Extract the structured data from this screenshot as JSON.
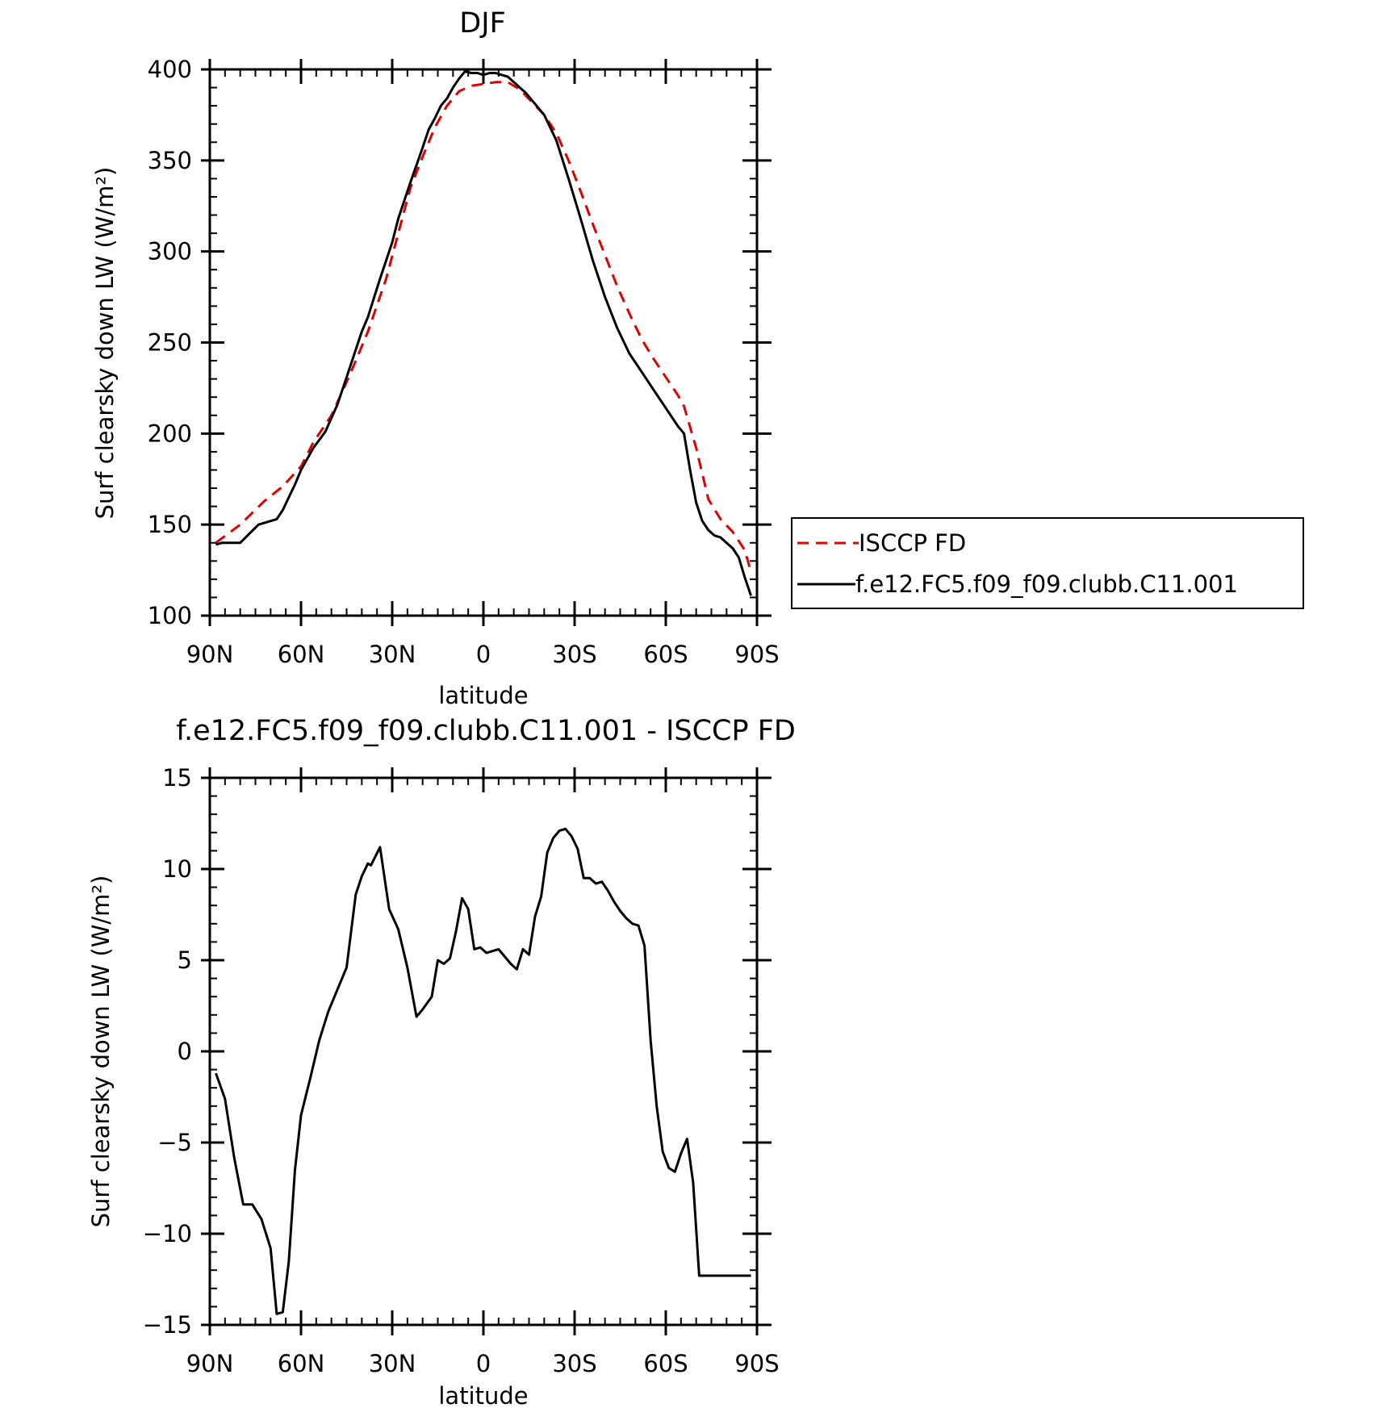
{
  "chart_data": [
    {
      "type": "line",
      "title": "DJF",
      "xlabel": "latitude",
      "ylabel": "Surf clearsky down LW (W/m²)",
      "ylim": [
        100,
        400
      ],
      "xlim": [
        90,
        -90
      ],
      "x_ticks": [
        90,
        60,
        30,
        0,
        -30,
        -60,
        -90
      ],
      "x_tick_labels": [
        "90N",
        "60N",
        "30N",
        "0",
        "30S",
        "60S",
        "90S"
      ],
      "y_ticks": [
        100,
        150,
        200,
        250,
        300,
        350,
        400
      ],
      "y_tick_labels": [
        "100",
        "150",
        "200",
        "250",
        "300",
        "350",
        "400"
      ],
      "legend": "right",
      "series": [
        {
          "name": "ISCCP FD",
          "color": "#e00000",
          "dash": "dashed",
          "x": [
            88,
            80,
            72,
            66,
            60,
            56,
            50,
            44,
            38,
            32,
            28,
            24,
            20,
            16,
            12,
            8,
            4,
            0,
            -4,
            -8,
            -12,
            -16,
            -20,
            -24,
            -28,
            -32,
            -36,
            -40,
            -44,
            -48,
            -52,
            -56,
            -60,
            -64,
            -66,
            -70,
            -74,
            -78,
            -82,
            -86,
            -88
          ],
          "y": [
            140,
            150,
            163,
            171,
            182,
            195,
            210,
            232,
            256,
            285,
            310,
            335,
            352,
            368,
            380,
            388,
            391,
            392,
            393,
            393,
            389,
            382,
            375,
            365,
            350,
            333,
            315,
            298,
            281,
            266,
            252,
            241,
            231,
            221,
            215,
            192,
            164,
            153,
            146,
            136,
            124
          ]
        },
        {
          "name": "f.e12.FC5.f09_f09.clubb.C11.001",
          "color": "#000000",
          "dash": "solid",
          "x": [
            88,
            86,
            80,
            74,
            70,
            68,
            66,
            64,
            62,
            60,
            56,
            52,
            48,
            44,
            40,
            38,
            34,
            32,
            30,
            28,
            24,
            20,
            18,
            16,
            14,
            12,
            10,
            8,
            6,
            4,
            2,
            0,
            -2,
            -4,
            -6,
            -8,
            -10,
            -12,
            -14,
            -16,
            -20,
            -24,
            -28,
            -32,
            -36,
            -40,
            -44,
            -48,
            -52,
            -56,
            -60,
            -64,
            -66,
            -68,
            -70,
            -72,
            -74,
            -76,
            -78,
            -80,
            -82,
            -84,
            -86,
            -88
          ],
          "y": [
            139,
            140,
            140,
            150,
            152,
            153,
            158,
            165,
            172,
            180,
            192,
            201,
            216,
            236,
            256,
            264,
            285,
            295,
            305,
            318,
            338,
            357,
            367,
            373,
            380,
            384,
            390,
            395,
            399,
            398,
            398,
            397,
            398,
            398,
            397,
            396,
            393,
            390,
            387,
            383,
            375,
            361,
            340,
            318,
            295,
            275,
            258,
            244,
            234,
            224,
            214,
            204,
            200,
            180,
            162,
            152,
            147,
            144,
            143,
            140,
            137,
            132,
            121,
            111
          ]
        }
      ]
    },
    {
      "type": "line",
      "title": "f.e12.FC5.f09_f09.clubb.C11.001 - ISCCP FD",
      "xlabel": "latitude",
      "ylabel": "Surf clearsky down LW (W/m²)",
      "ylim": [
        -15,
        15
      ],
      "xlim": [
        90,
        -90
      ],
      "x_ticks": [
        90,
        60,
        30,
        0,
        -30,
        -60,
        -90
      ],
      "x_tick_labels": [
        "90N",
        "60N",
        "30N",
        "0",
        "30S",
        "60S",
        "90S"
      ],
      "y_ticks": [
        -15,
        -10,
        -5,
        0,
        5,
        10,
        15
      ],
      "y_tick_labels": [
        "−15",
        "−10",
        "−5",
        "0",
        "5",
        "10",
        "15"
      ],
      "series": [
        {
          "color": "#000000",
          "dash": "solid",
          "x": [
            88,
            85,
            82,
            79,
            76,
            73,
            70,
            68,
            66,
            64,
            62,
            60,
            57,
            54,
            51,
            48,
            45,
            42,
            40,
            38,
            37,
            34,
            31,
            28,
            25,
            22,
            20,
            17,
            15,
            13,
            11,
            9,
            7,
            5,
            3,
            1,
            -1,
            -3,
            -5,
            -7,
            -9,
            -11,
            -13,
            -15,
            -17,
            -19,
            -21,
            -23,
            -25,
            -27,
            -29,
            -31,
            -33,
            -35,
            -37,
            -39,
            -41,
            -43,
            -45,
            -47,
            -49,
            -51,
            -53,
            -55,
            -57,
            -59,
            -61,
            -63,
            -65,
            -67,
            -69,
            -71,
            -73,
            -75,
            -77,
            -79,
            -81,
            -83,
            -85,
            -87,
            -88
          ],
          "y": [
            -1.2,
            -2.6,
            -5.8,
            -8.4,
            -8.4,
            -9.2,
            -10.8,
            -14.4,
            -14.3,
            -11.5,
            -6.5,
            -3.5,
            -1.5,
            0.6,
            2.2,
            3.4,
            4.6,
            8.6,
            9.6,
            10.3,
            10.2,
            11.2,
            7.8,
            6.7,
            4.6,
            1.9,
            2.3,
            3.0,
            5.0,
            4.8,
            5.1,
            6.6,
            8.4,
            7.8,
            5.6,
            5.7,
            5.4,
            5.5,
            5.6,
            5.2,
            4.8,
            4.5,
            5.6,
            5.3,
            7.4,
            8.5,
            10.9,
            11.7,
            12.1,
            12.2,
            11.8,
            11.1,
            9.5,
            9.5,
            9.2,
            9.3,
            8.8,
            8.2,
            7.7,
            7.3,
            7.0,
            6.9,
            5.8,
            0.6,
            -3.0,
            -5.5,
            -6.4,
            -6.6,
            -5.6,
            -4.8,
            -7.2,
            -12.3,
            -12.3,
            -12.3,
            -12.3,
            -12.3,
            -12.3,
            -12.3,
            -12.3,
            -12.3,
            -12.3
          ]
        }
      ]
    }
  ]
}
